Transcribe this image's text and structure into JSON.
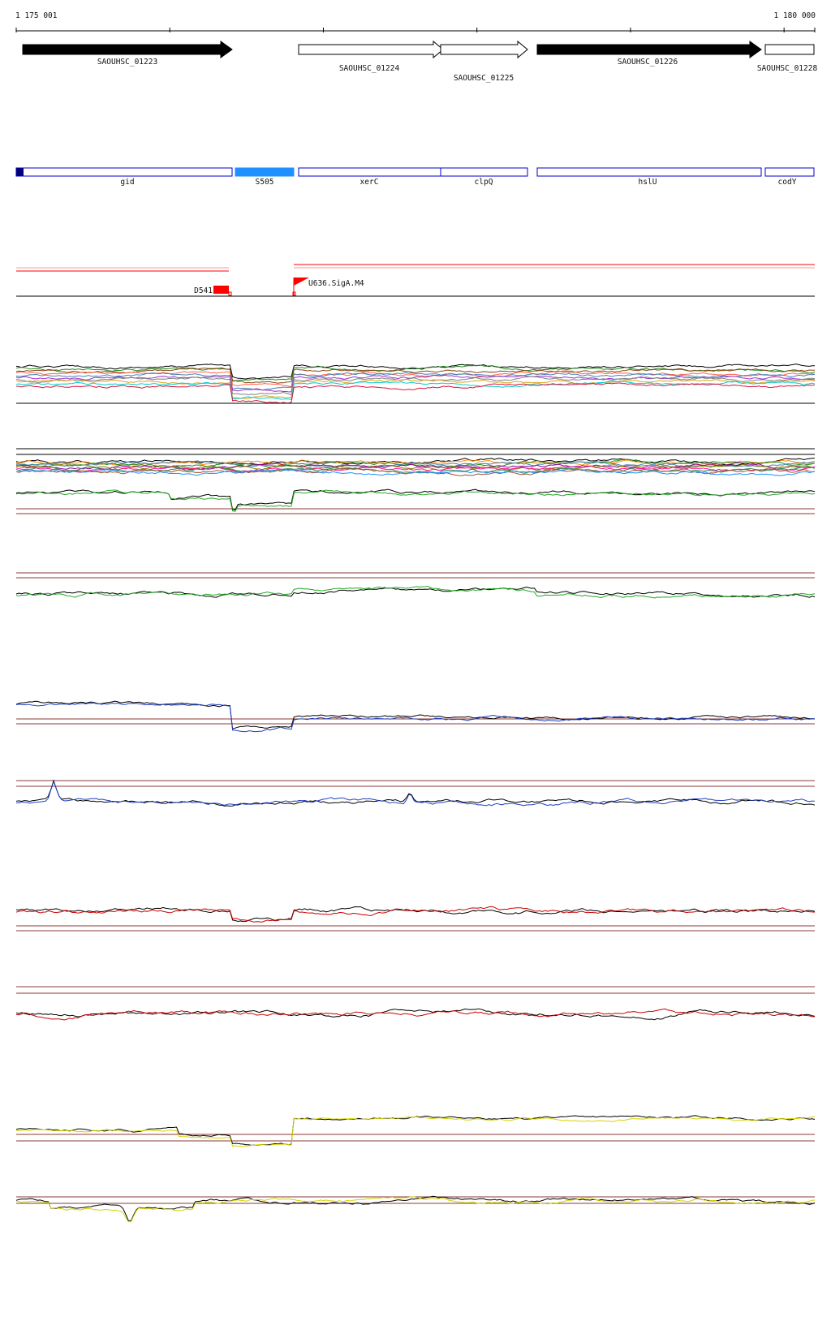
{
  "ruler": {
    "start_label": "1 175 001",
    "end_label": "1 180 000"
  },
  "genes": [
    {
      "id": "SAOUHSC_01223",
      "strand": "+",
      "filled": true
    },
    {
      "id": "SAOUHSC_01224",
      "strand": "+",
      "filled": false
    },
    {
      "id": "SAOUHSC_01225",
      "strand": "+",
      "filled": false
    },
    {
      "id": "SAOUHSC_01226",
      "strand": "+",
      "filled": true
    },
    {
      "id": "SAOUHSC_01228",
      "strand": "+",
      "filled": false
    }
  ],
  "features": [
    {
      "name": "gid",
      "fill": "#ffffff"
    },
    {
      "name": "S505",
      "fill": "#1e90ff"
    },
    {
      "name": "xerC",
      "fill": "#ffffff"
    },
    {
      "name": "clpQ",
      "fill": "#ffffff"
    },
    {
      "name": "hslU",
      "fill": "#ffffff"
    },
    {
      "name": "codY",
      "fill": "#ffffff"
    }
  ],
  "annotations": [
    {
      "name": "D541",
      "color": "#ff0000"
    },
    {
      "name": "U636.SigA.M4",
      "color": "#ff0000"
    }
  ],
  "colors": {
    "feature_outline": "#0000cc",
    "annotation": "#ff0000",
    "threshold": "#8b3a3a"
  },
  "tracks": [
    {
      "id": "multi-sample-1",
      "colors": [
        "#000000",
        "#228b22",
        "#8b4513",
        "#ff6347",
        "#4682b4",
        "#9932cc",
        "#808080",
        "#daa520",
        "#00ced1",
        "#dc143c"
      ]
    },
    {
      "id": "multi-sample-2",
      "colors": [
        "#000000",
        "#ff8c00",
        "#228b22",
        "#4682b4",
        "#8b008b",
        "#808000",
        "#ff1493",
        "#2e8b57",
        "#a0522d",
        "#1e90ff"
      ]
    },
    {
      "id": "green-1",
      "colors": [
        "#000000",
        "#22aa22"
      ]
    },
    {
      "id": "green-2",
      "colors": [
        "#000000",
        "#22aa22"
      ]
    },
    {
      "id": "blue-1",
      "colors": [
        "#000000",
        "#1f3fbf"
      ]
    },
    {
      "id": "blue-2",
      "colors": [
        "#000000",
        "#1f3fbf"
      ]
    },
    {
      "id": "red-1",
      "colors": [
        "#000000",
        "#cc0000"
      ]
    },
    {
      "id": "red-2",
      "colors": [
        "#000000",
        "#cc0000"
      ]
    },
    {
      "id": "yellow-1",
      "colors": [
        "#000000",
        "#d4d400"
      ]
    },
    {
      "id": "yellow-2",
      "colors": [
        "#000000",
        "#d4d400"
      ]
    }
  ]
}
